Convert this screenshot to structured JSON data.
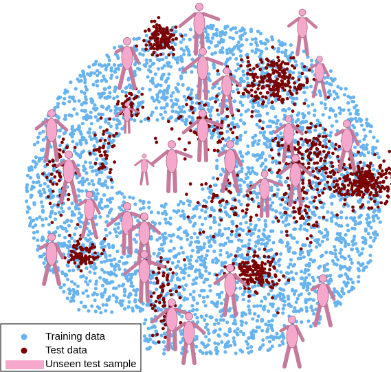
{
  "legend": {
    "items": [
      {
        "label": "Training data",
        "color": "#66b3f0"
      },
      {
        "label": "Test data",
        "color": "#7a0000"
      },
      {
        "label": "Unseen test sample",
        "color": "#f6a8cc"
      }
    ]
  }
}
